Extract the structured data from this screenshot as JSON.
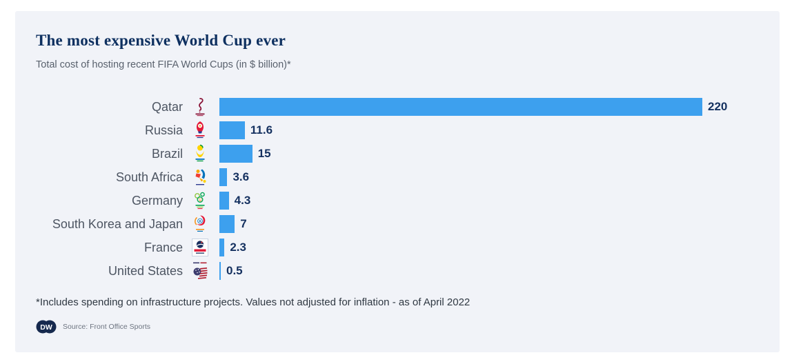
{
  "card": {
    "title": "The most expensive World Cup ever",
    "subtitle": "Total cost of hosting recent FIFA World Cups (in $ billion)*",
    "footnote": "*Includes spending on infrastructure projects. Values not adjusted for inflation - as of April 2022",
    "source_label": "Source: Front Office Sports",
    "brand": "DW"
  },
  "colors": {
    "bar": "#3da0ee",
    "title_text": "#0e3060",
    "value_text": "#14305f",
    "label_text": "#4d5562",
    "card_background": "#f1f3f8",
    "page_background": "#ffffff",
    "brand_navy": "#16294e"
  },
  "chart_data": {
    "type": "bar",
    "orientation": "horizontal",
    "title": "The most expensive World Cup ever",
    "subtitle": "Total cost of hosting recent FIFA World Cups (in $ billion)*",
    "unit": "$ billion",
    "xlim": [
      0,
      220
    ],
    "grid": false,
    "legend": "none",
    "categories": [
      "Qatar",
      "Russia",
      "Brazil",
      "South Africa",
      "Germany",
      "South Korea and Japan",
      "France",
      "United States"
    ],
    "values": [
      220,
      11.6,
      15,
      3.6,
      4.3,
      7,
      2.3,
      0.5
    ],
    "value_labels": [
      "220",
      "11.6",
      "15",
      "3.6",
      "4.3",
      "7",
      "2.3",
      "0.5"
    ],
    "icons": [
      "qatar-2022-worldcup-logo-icon",
      "russia-2018-worldcup-logo-icon",
      "brazil-2014-worldcup-logo-icon",
      "south-africa-2010-worldcup-logo-icon",
      "germany-2006-worldcup-logo-icon",
      "korea-japan-2002-worldcup-logo-icon",
      "france-1998-worldcup-logo-icon",
      "usa-1994-worldcup-logo-icon"
    ]
  }
}
